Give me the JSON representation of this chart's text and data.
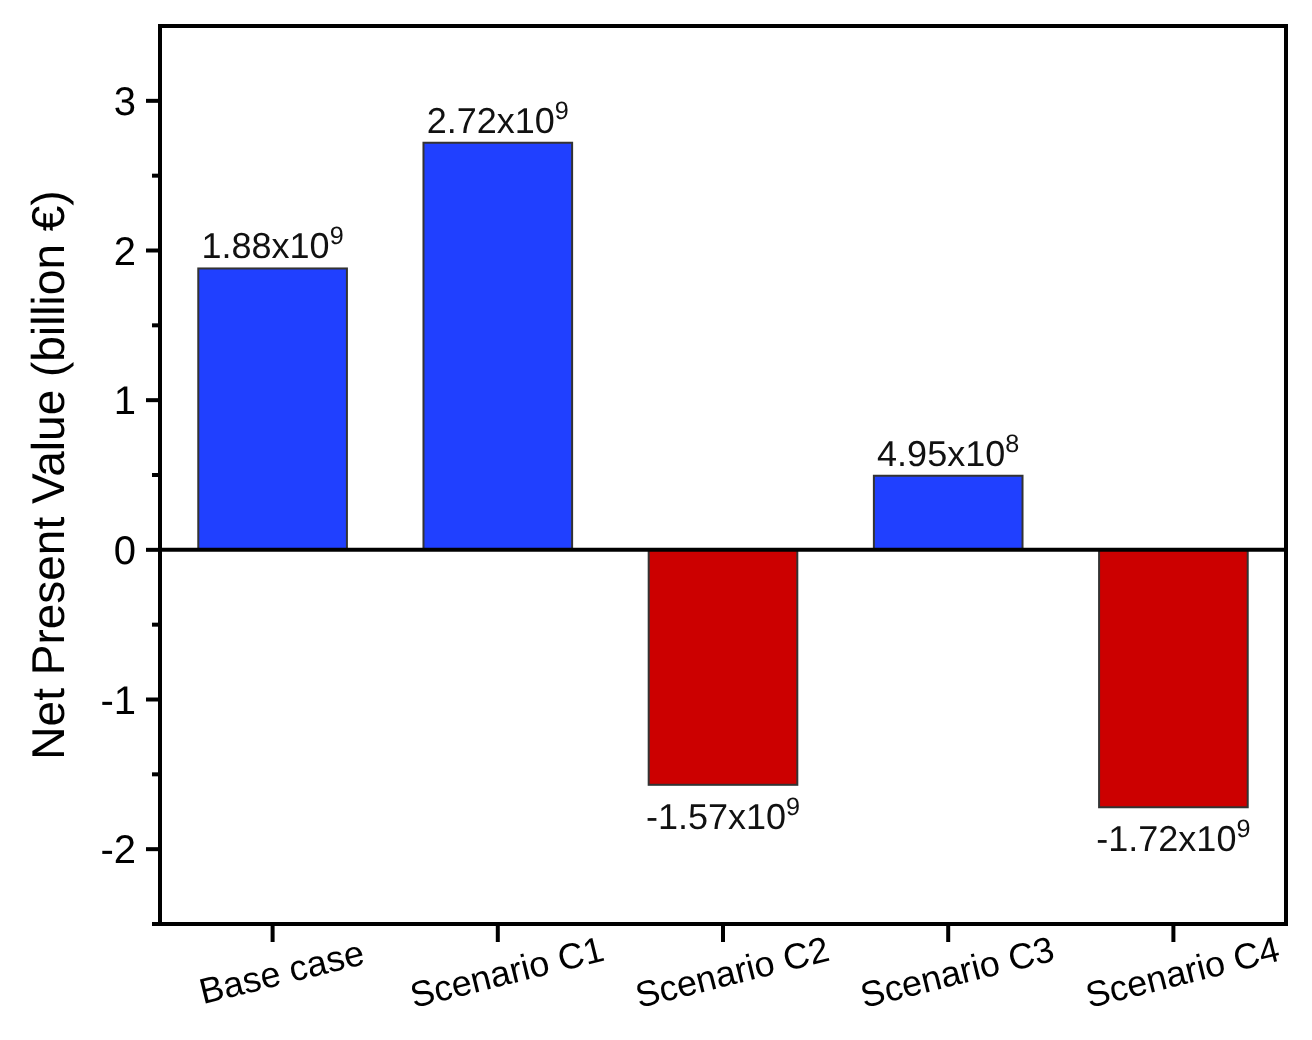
{
  "chart_data": {
    "type": "bar",
    "ylabel": "Net Present Value (billion €)",
    "categories": [
      "Base case",
      "Scenario C1",
      "Scenario C2",
      "Scenario C3",
      "Scenario C4"
    ],
    "values": [
      1.88,
      2.72,
      -1.57,
      0.495,
      -1.72
    ],
    "colors": [
      "#2040ff",
      "#2040ff",
      "#cc0000",
      "#2040ff",
      "#cc0000"
    ],
    "annotations": [
      {
        "text": "1.88x10$^{9}$",
        "x": "Base case",
        "y": 1.88
      },
      {
        "text": "2.72x10$^{9}$",
        "x": "Scenario C1",
        "y": 2.72
      },
      {
        "text": "-1.57x10$^{9}$",
        "x": "Scenario C2",
        "y": -1.57
      },
      {
        "text": "4.95x10$^{8}$",
        "x": "Scenario C3",
        "y": 0.495
      },
      {
        "text": "-1.72x10$^{9}$",
        "x": "Scenario C4",
        "y": -1.72
      }
    ],
    "ylim": [
      -2.5,
      3.5
    ],
    "yticks": [
      {
        "value": -2.5,
        "label": null
      },
      -2,
      {
        "value": -1.5,
        "label": null
      },
      -1,
      {
        "value": -0.5,
        "label": null
      },
      0,
      {
        "value": 0.5,
        "label": null
      },
      1,
      {
        "value": 1.5,
        "label": null
      },
      2,
      {
        "value": 2.5,
        "label": null
      },
      3
    ],
    "ref_lines": [
      {
        "axis": "y",
        "value": 0
      }
    ],
    "grid": false
  }
}
